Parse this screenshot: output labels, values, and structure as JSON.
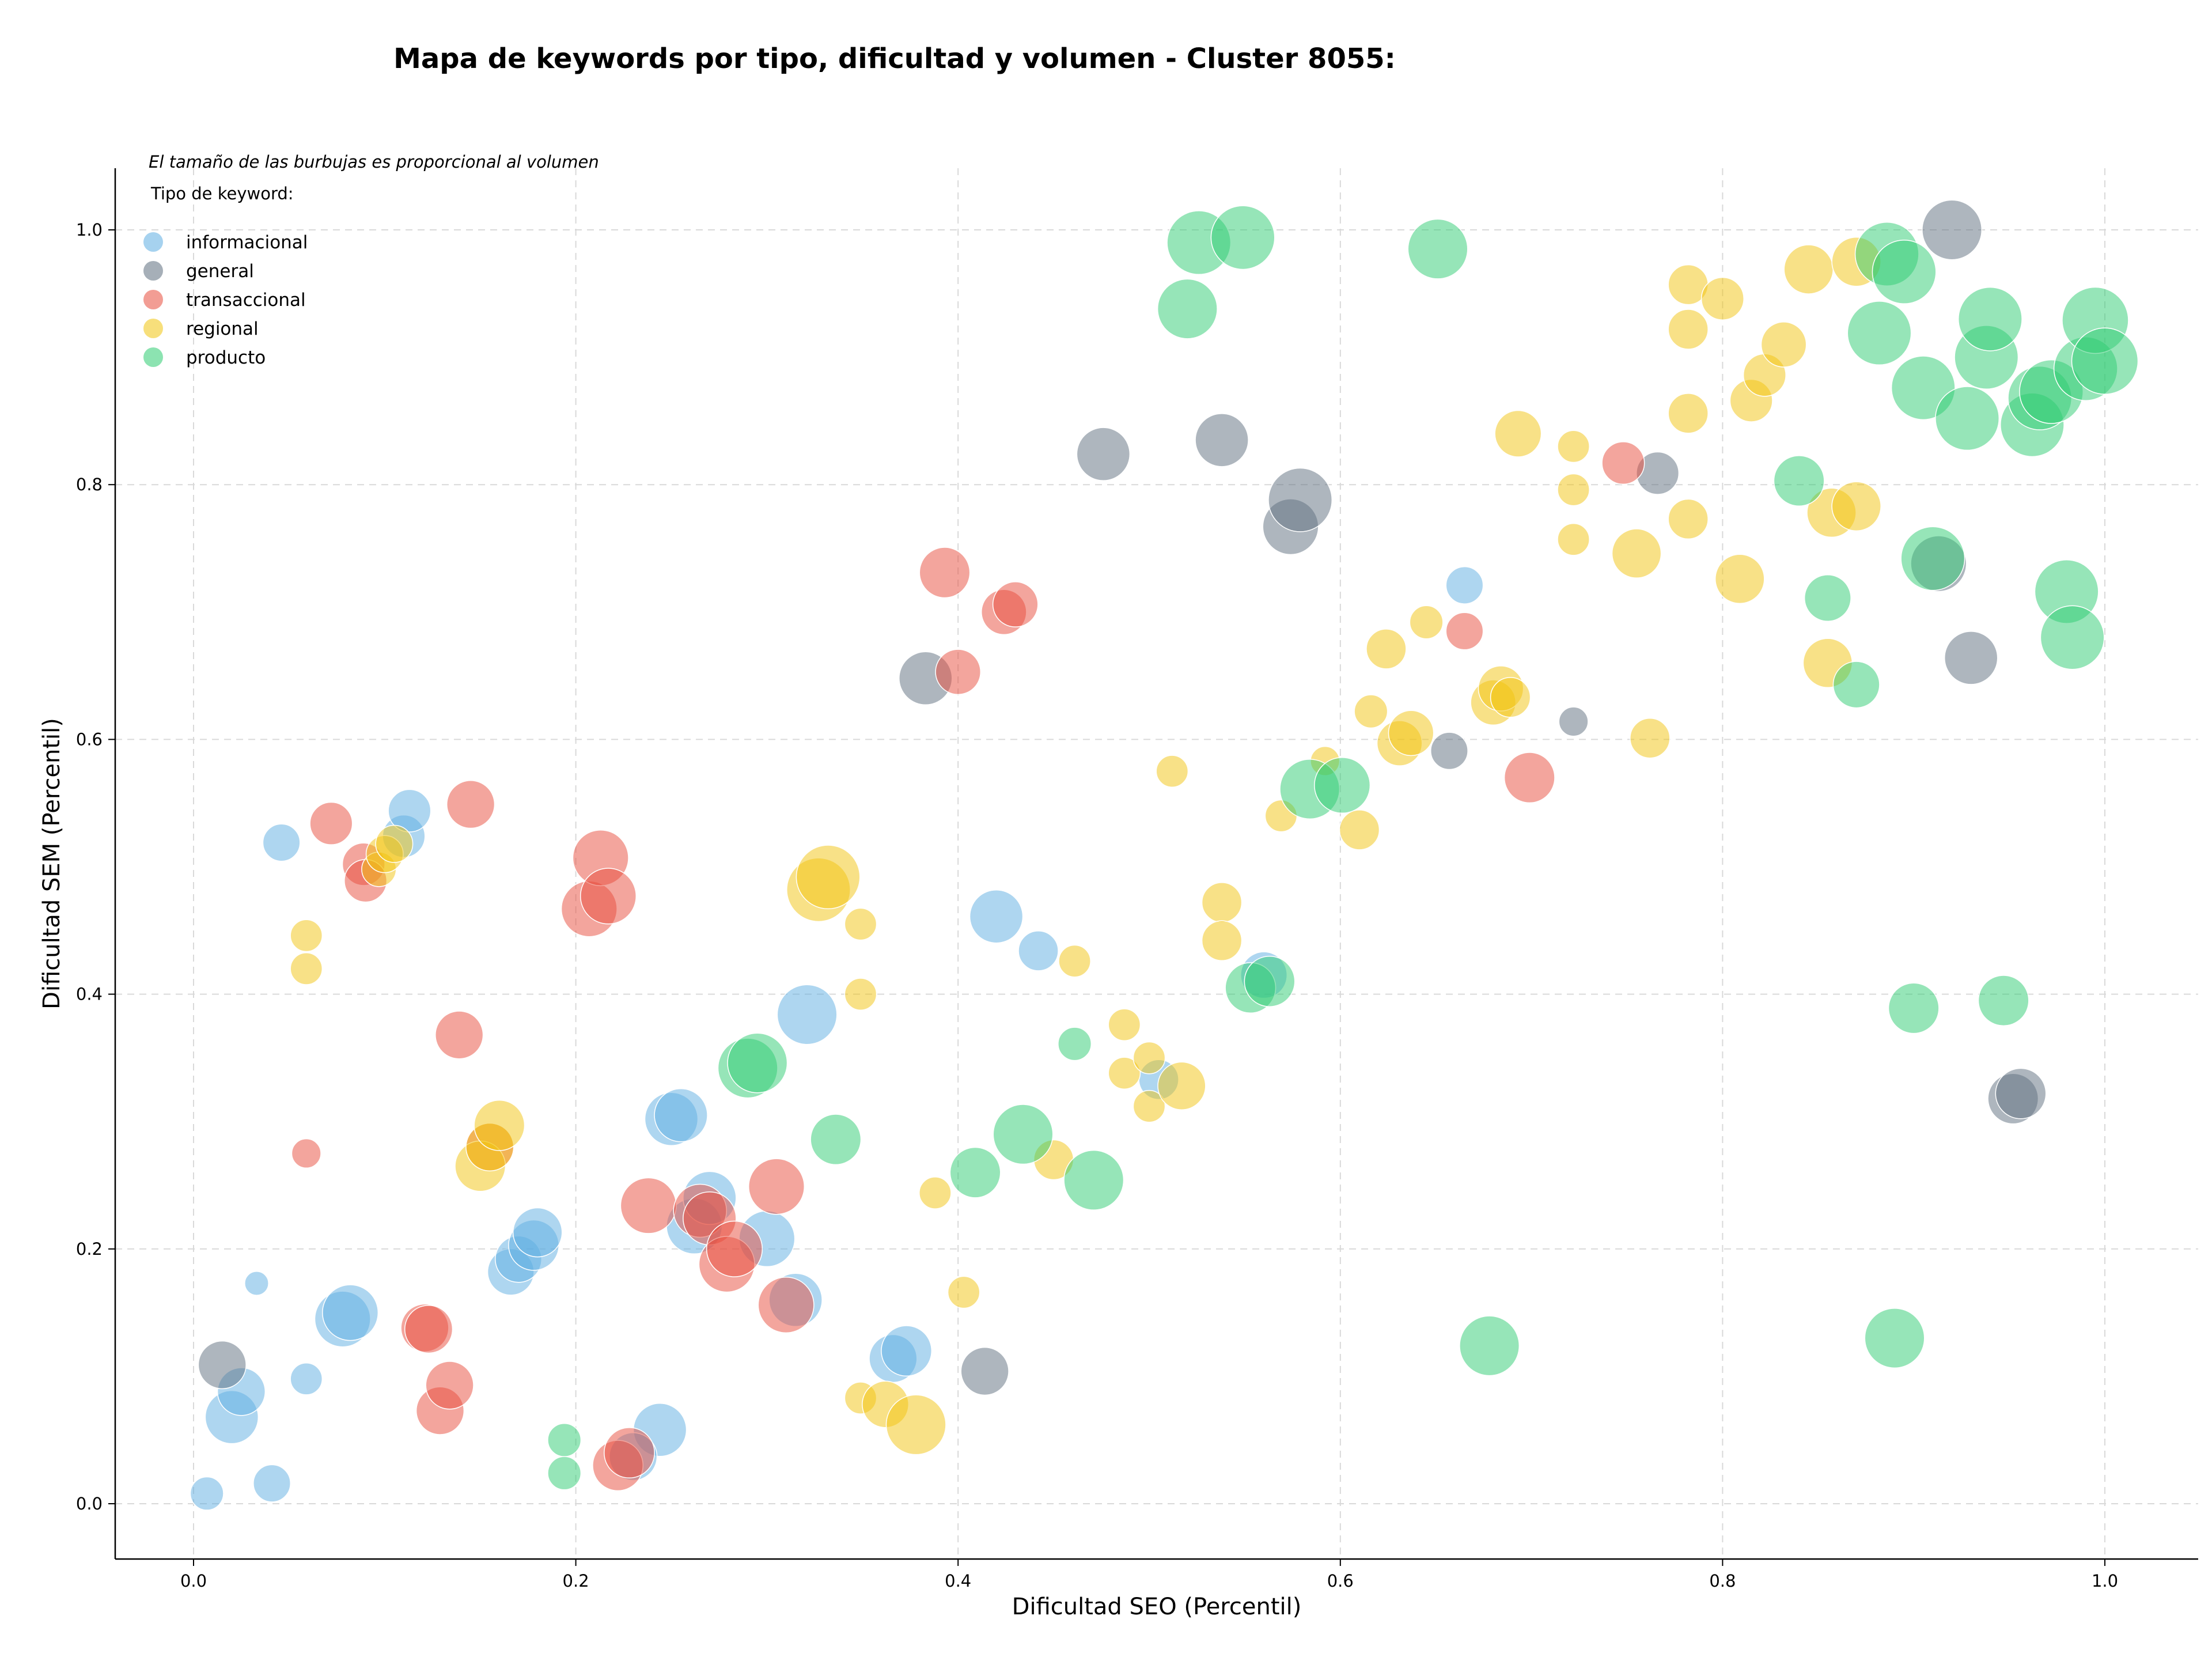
{
  "chart_data": {
    "type": "scatter",
    "title": "Mapa de keywords por tipo, dificultad y volumen - Cluster 8055:",
    "xlabel": "Dificultad SEO (Percentil)",
    "ylabel": "Dificultad SEM (Percentil)",
    "xlim": [
      -0.04,
      1.05
    ],
    "ylim": [
      -0.04,
      1.05
    ],
    "x_ticks": [
      "0.0",
      "0.2",
      "0.4",
      "0.6",
      "0.8",
      "1.0"
    ],
    "y_ticks": [
      "0.0",
      "0.2",
      "0.4",
      "0.6",
      "0.8",
      "1.0"
    ],
    "grid": true,
    "legend_position": "top-left",
    "legend_note": "El tamaño de las burbujas es proporcional al volumen",
    "legend_title": "Tipo de keyword:",
    "series": [
      {
        "name": "informacional",
        "color": "#5dade2",
        "points": [
          [
            0.007,
            0.008,
            25
          ],
          [
            0.041,
            0.016,
            28
          ],
          [
            0.02,
            0.068,
            40
          ],
          [
            0.025,
            0.088,
            36
          ],
          [
            0.059,
            0.098,
            24
          ],
          [
            0.078,
            0.145,
            42
          ],
          [
            0.082,
            0.15,
            42
          ],
          [
            0.033,
            0.173,
            18
          ],
          [
            0.046,
            0.519,
            28
          ],
          [
            0.11,
            0.524,
            32
          ],
          [
            0.113,
            0.544,
            32
          ],
          [
            0.166,
            0.182,
            35
          ],
          [
            0.17,
            0.192,
            35
          ],
          [
            0.178,
            0.203,
            38
          ],
          [
            0.18,
            0.213,
            37
          ],
          [
            0.244,
            0.058,
            40
          ],
          [
            0.23,
            0.037,
            36
          ],
          [
            0.25,
            0.302,
            40
          ],
          [
            0.255,
            0.305,
            40
          ],
          [
            0.262,
            0.218,
            42
          ],
          [
            0.27,
            0.24,
            40
          ],
          [
            0.3,
            0.208,
            42
          ],
          [
            0.315,
            0.16,
            40
          ],
          [
            0.321,
            0.384,
            45
          ],
          [
            0.366,
            0.114,
            36
          ],
          [
            0.373,
            0.12,
            38
          ],
          [
            0.42,
            0.461,
            40
          ],
          [
            0.442,
            0.434,
            30
          ],
          [
            0.505,
            0.333,
            30
          ],
          [
            0.56,
            0.415,
            35
          ],
          [
            0.665,
            0.721,
            28
          ]
        ]
      },
      {
        "name": "general",
        "color": "#5d6d7e",
        "points": [
          [
            0.015,
            0.109,
            36
          ],
          [
            0.383,
            0.648,
            40
          ],
          [
            0.414,
            0.104,
            36
          ],
          [
            0.476,
            0.824,
            40
          ],
          [
            0.538,
            0.835,
            40
          ],
          [
            0.574,
            0.767,
            42
          ],
          [
            0.579,
            0.788,
            48
          ],
          [
            0.657,
            0.591,
            28
          ],
          [
            0.722,
            0.614,
            22
          ],
          [
            0.766,
            0.809,
            32
          ],
          [
            0.913,
            0.738,
            42
          ],
          [
            0.92,
            1.0,
            45
          ],
          [
            0.93,
            0.664,
            40
          ],
          [
            0.952,
            0.318,
            38
          ],
          [
            0.956,
            0.322,
            38
          ]
        ]
      },
      {
        "name": "transaccional",
        "color": "#e74c3c",
        "points": [
          [
            0.059,
            0.275,
            22
          ],
          [
            0.072,
            0.534,
            32
          ],
          [
            0.089,
            0.502,
            32
          ],
          [
            0.09,
            0.489,
            32
          ],
          [
            0.121,
            0.138,
            36
          ],
          [
            0.123,
            0.137,
            36
          ],
          [
            0.129,
            0.073,
            36
          ],
          [
            0.134,
            0.093,
            36
          ],
          [
            0.139,
            0.368,
            36
          ],
          [
            0.145,
            0.549,
            36
          ],
          [
            0.155,
            0.28,
            36
          ],
          [
            0.207,
            0.467,
            42
          ],
          [
            0.213,
            0.507,
            42
          ],
          [
            0.217,
            0.477,
            42
          ],
          [
            0.222,
            0.03,
            38
          ],
          [
            0.228,
            0.04,
            38
          ],
          [
            0.238,
            0.234,
            42
          ],
          [
            0.265,
            0.23,
            40
          ],
          [
            0.27,
            0.224,
            40
          ],
          [
            0.279,
            0.188,
            42
          ],
          [
            0.283,
            0.2,
            42
          ],
          [
            0.305,
            0.249,
            42
          ],
          [
            0.31,
            0.156,
            42
          ],
          [
            0.393,
            0.731,
            38
          ],
          [
            0.4,
            0.653,
            34
          ],
          [
            0.424,
            0.7,
            34
          ],
          [
            0.43,
            0.706,
            34
          ],
          [
            0.665,
            0.685,
            28
          ],
          [
            0.699,
            0.57,
            38
          ],
          [
            0.748,
            0.817,
            32
          ]
        ]
      },
      {
        "name": "regional",
        "color": "#f1c40f",
        "points": [
          [
            0.059,
            0.446,
            24
          ],
          [
            0.059,
            0.42,
            24
          ],
          [
            0.097,
            0.498,
            26
          ],
          [
            0.1,
            0.51,
            28
          ],
          [
            0.105,
            0.518,
            28
          ],
          [
            0.15,
            0.265,
            38
          ],
          [
            0.155,
            0.28,
            36
          ],
          [
            0.16,
            0.297,
            38
          ],
          [
            0.327,
            0.482,
            48
          ],
          [
            0.332,
            0.492,
            48
          ],
          [
            0.349,
            0.455,
            24
          ],
          [
            0.349,
            0.4,
            24
          ],
          [
            0.349,
            0.083,
            24
          ],
          [
            0.362,
            0.078,
            35
          ],
          [
            0.378,
            0.062,
            45
          ],
          [
            0.388,
            0.244,
            24
          ],
          [
            0.403,
            0.166,
            24
          ],
          [
            0.45,
            0.27,
            30
          ],
          [
            0.461,
            0.426,
            24
          ],
          [
            0.487,
            0.376,
            24
          ],
          [
            0.487,
            0.338,
            24
          ],
          [
            0.5,
            0.312,
            24
          ],
          [
            0.5,
            0.35,
            24
          ],
          [
            0.517,
            0.328,
            36
          ],
          [
            0.512,
            0.575,
            24
          ],
          [
            0.538,
            0.472,
            30
          ],
          [
            0.538,
            0.442,
            30
          ],
          [
            0.569,
            0.54,
            24
          ],
          [
            0.592,
            0.583,
            22
          ],
          [
            0.61,
            0.529,
            30
          ],
          [
            0.616,
            0.622,
            25
          ],
          [
            0.624,
            0.671,
            30
          ],
          [
            0.631,
            0.597,
            34
          ],
          [
            0.637,
            0.605,
            34
          ],
          [
            0.645,
            0.692,
            25
          ],
          [
            0.68,
            0.629,
            34
          ],
          [
            0.684,
            0.64,
            34
          ],
          [
            0.689,
            0.633,
            30
          ],
          [
            0.693,
            0.84,
            35
          ],
          [
            0.722,
            0.83,
            24
          ],
          [
            0.722,
            0.796,
            24
          ],
          [
            0.722,
            0.757,
            24
          ],
          [
            0.755,
            0.746,
            37
          ],
          [
            0.762,
            0.601,
            30
          ],
          [
            0.782,
            0.957,
            30
          ],
          [
            0.782,
            0.922,
            30
          ],
          [
            0.782,
            0.856,
            30
          ],
          [
            0.782,
            0.773,
            30
          ],
          [
            0.8,
            0.946,
            32
          ],
          [
            0.809,
            0.726,
            37
          ],
          [
            0.815,
            0.866,
            32
          ],
          [
            0.822,
            0.886,
            32
          ],
          [
            0.832,
            0.91,
            34
          ],
          [
            0.845,
            0.969,
            37
          ],
          [
            0.855,
            0.66,
            37
          ],
          [
            0.857,
            0.778,
            37
          ],
          [
            0.87,
            0.975,
            37
          ],
          [
            0.87,
            0.783,
            37
          ]
        ]
      },
      {
        "name": "producto",
        "color": "#2ecc71",
        "points": [
          [
            0.194,
            0.05,
            25
          ],
          [
            0.194,
            0.024,
            25
          ],
          [
            0.29,
            0.342,
            45
          ],
          [
            0.295,
            0.346,
            45
          ],
          [
            0.336,
            0.286,
            38
          ],
          [
            0.409,
            0.26,
            38
          ],
          [
            0.434,
            0.29,
            45
          ],
          [
            0.461,
            0.361,
            25
          ],
          [
            0.471,
            0.254,
            45
          ],
          [
            0.52,
            0.938,
            45
          ],
          [
            0.526,
            0.99,
            48
          ],
          [
            0.549,
            0.994,
            48
          ],
          [
            0.553,
            0.405,
            38
          ],
          [
            0.563,
            0.41,
            38
          ],
          [
            0.584,
            0.561,
            45
          ],
          [
            0.601,
            0.564,
            42
          ],
          [
            0.651,
            0.985,
            45
          ],
          [
            0.678,
            0.124,
            45
          ],
          [
            0.84,
            0.803,
            38
          ],
          [
            0.855,
            0.711,
            35
          ],
          [
            0.87,
            0.643,
            35
          ],
          [
            0.882,
            0.919,
            48
          ],
          [
            0.886,
            0.981,
            48
          ],
          [
            0.895,
            0.967,
            48
          ],
          [
            0.89,
            0.13,
            45
          ],
          [
            0.9,
            0.389,
            38
          ],
          [
            0.905,
            0.876,
            48
          ],
          [
            0.91,
            0.742,
            48
          ],
          [
            0.928,
            0.852,
            48
          ],
          [
            0.938,
            0.9,
            48
          ],
          [
            0.94,
            0.93,
            48
          ],
          [
            0.947,
            0.395,
            38
          ],
          [
            0.962,
            0.847,
            48
          ],
          [
            0.966,
            0.868,
            48
          ],
          [
            0.972,
            0.873,
            48
          ],
          [
            0.98,
            0.716,
            48
          ],
          [
            0.983,
            0.68,
            48
          ],
          [
            0.99,
            0.891,
            48
          ],
          [
            0.995,
            0.929,
            50
          ],
          [
            1.0,
            0.897,
            50
          ]
        ]
      }
    ]
  }
}
